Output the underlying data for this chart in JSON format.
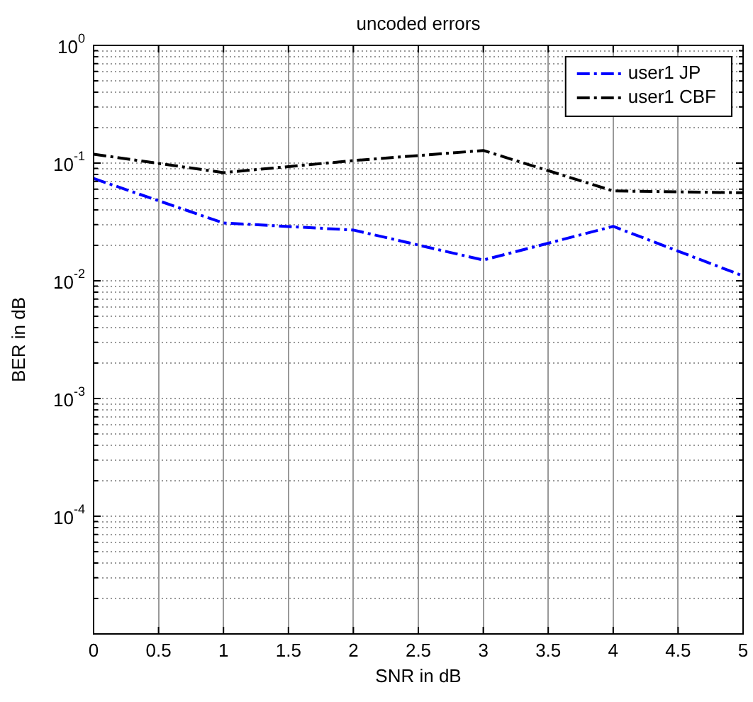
{
  "chart_data": {
    "type": "line",
    "title": "uncoded errors",
    "xlabel": "SNR in dB",
    "ylabel": "BER in dB",
    "x": [
      0,
      1,
      2,
      3,
      4,
      5
    ],
    "series": [
      {
        "name": "user1 JP",
        "color": "#0000ff",
        "values": [
          0.074,
          0.031,
          0.027,
          0.015,
          0.029,
          0.011
        ]
      },
      {
        "name": "user1 CBF",
        "color": "#000000",
        "values": [
          0.119,
          0.083,
          0.105,
          0.128,
          0.058,
          0.056
        ]
      }
    ],
    "log": "y",
    "xlim": [
      0,
      5
    ],
    "xticks": [
      0,
      0.5,
      1,
      1.5,
      2,
      2.5,
      3,
      3.5,
      4,
      4.5,
      5
    ],
    "ylim": [
      1e-05,
      1
    ],
    "yticks": [
      {
        "value": 2e-05,
        "label": null
      },
      {
        "value": 3e-05,
        "label": null
      },
      {
        "value": 4e-05,
        "label": null
      },
      {
        "value": 5e-05,
        "label": null
      },
      {
        "value": 6e-05,
        "label": null
      },
      {
        "value": 7e-05,
        "label": null
      },
      {
        "value": 8e-05,
        "label": null
      },
      {
        "value": 9e-05,
        "label": null
      },
      {
        "value": 0.0001,
        "label": "10$^{-4}$"
      },
      {
        "value": 0.0002,
        "label": null
      },
      {
        "value": 0.0003,
        "label": null
      },
      {
        "value": 0.0004,
        "label": null
      },
      {
        "value": 0.0005,
        "label": null
      },
      {
        "value": 0.0006,
        "label": null
      },
      {
        "value": 0.0007,
        "label": null
      },
      {
        "value": 0.0008,
        "label": null
      },
      {
        "value": 0.0009,
        "label": null
      },
      {
        "value": 0.001,
        "label": "10$^{-3}$"
      },
      {
        "value": 0.002,
        "label": null
      },
      {
        "value": 0.003,
        "label": null
      },
      {
        "value": 0.004,
        "label": null
      },
      {
        "value": 0.005,
        "label": null
      },
      {
        "value": 0.006,
        "label": null
      },
      {
        "value": 0.007,
        "label": null
      },
      {
        "value": 0.008,
        "label": null
      },
      {
        "value": 0.009,
        "label": null
      },
      {
        "value": 0.01,
        "label": "10$^{-2}$"
      },
      {
        "value": 0.02,
        "label": null
      },
      {
        "value": 0.03,
        "label": null
      },
      {
        "value": 0.04,
        "label": null
      },
      {
        "value": 0.05,
        "label": null
      },
      {
        "value": 0.06,
        "label": null
      },
      {
        "value": 0.07,
        "label": null
      },
      {
        "value": 0.08,
        "label": null
      },
      {
        "value": 0.09,
        "label": null
      },
      {
        "value": 0.1,
        "label": "10$^{-1}$"
      },
      {
        "value": 0.2,
        "label": null
      },
      {
        "value": 0.3,
        "label": null
      },
      {
        "value": 0.4,
        "label": null
      },
      {
        "value": 0.5,
        "label": null
      },
      {
        "value": 0.6,
        "label": null
      },
      {
        "value": 0.7,
        "label": null
      },
      {
        "value": 0.8,
        "label": null
      },
      {
        "value": 0.9,
        "label": null
      },
      {
        "value": 1,
        "label": "10$^{0}$"
      }
    ],
    "grid": true,
    "legend": "top right",
    "marker": "none",
    "line_style": "dashed"
  }
}
